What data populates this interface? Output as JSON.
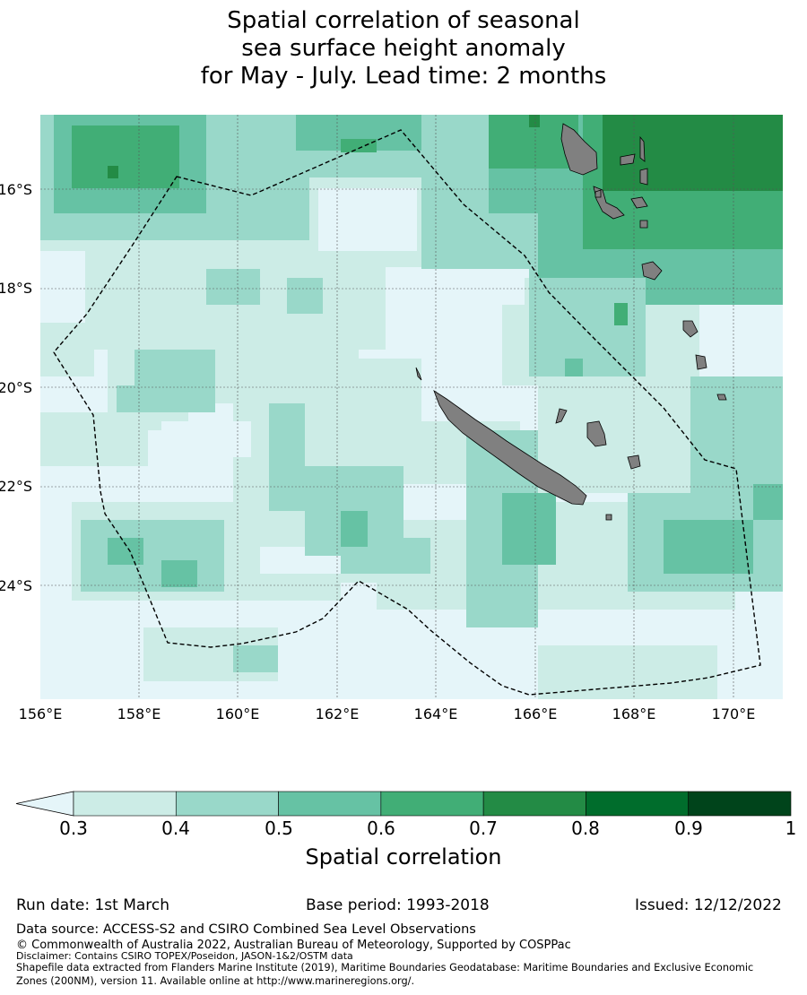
{
  "title_lines": [
    "Spatial correlation of seasonal",
    "sea surface height anomaly",
    "for May - July. Lead time: 2 months"
  ],
  "map": {
    "lat_labels": [
      "16°S",
      "18°S",
      "20°S",
      "22°S",
      "24°S"
    ],
    "lon_labels": [
      "156°E",
      "158°E",
      "160°E",
      "162°E",
      "164°E",
      "166°E",
      "168°E",
      "170°E"
    ],
    "land_color": "#808080"
  },
  "colorbar": {
    "label": "Spatial correlation",
    "ticks": [
      "0.3",
      "0.4",
      "0.5",
      "0.6",
      "0.7",
      "0.8",
      "0.9",
      "1"
    ],
    "colors": [
      "#e5f5f9",
      "#ccece6",
      "#99d8c9",
      "#66c2a4",
      "#41ae76",
      "#238b45",
      "#006d2c",
      "#00441b"
    ]
  },
  "footer": {
    "run_date": "Run date: 1st March",
    "base_period": "Base period: 1993-2018",
    "issued": "Issued: 12/12/2022",
    "data_source": "Data source: ACCESS-S2 and CSIRO Combined Sea Level Observations",
    "copyright": "© Commonwealth of Australia 2022, Australian Bureau of Meteorology, Supported by COSPPac",
    "disclaimer": "Disclaimer: Contains CSIRO TOPEX/Poseidon, JASON-1&2/OSTM data",
    "shapefile_1": "Shapefile data extracted from Flanders Marine Institute (2019), Maritime Boundaries Geodatabase: Maritime Boundaries and Exclusive Economic",
    "shapefile_2": "Zones (200NM), version 11. Available online at http://www.marineregions.org/."
  }
}
